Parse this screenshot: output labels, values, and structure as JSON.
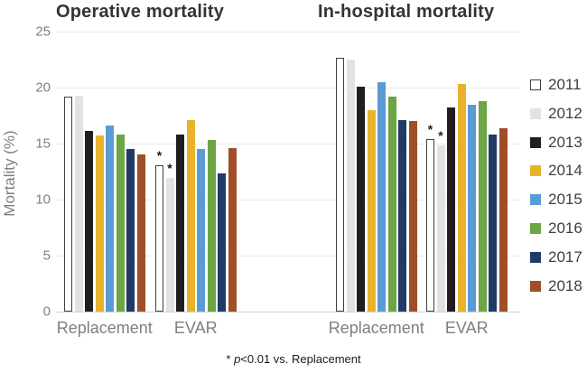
{
  "figure": {
    "y_axis_label": "Mortality (%)",
    "footnote": {
      "star": "*",
      "p": "p",
      "rest": "<0.01 vs. Replacement"
    }
  },
  "legend": {
    "position": "right",
    "entries": [
      {
        "label": "2011",
        "color": "#ffffff",
        "border": "#404040"
      },
      {
        "label": "2012",
        "color": "#e2e2e2"
      },
      {
        "label": "2013",
        "color": "#221e1f"
      },
      {
        "label": "2014",
        "color": "#e8b32a"
      },
      {
        "label": "2015",
        "color": "#5b9bd5"
      },
      {
        "label": "2016",
        "color": "#6ca544"
      },
      {
        "label": "2017",
        "color": "#1f3b66"
      },
      {
        "label": "2018",
        "color": "#a04e28"
      }
    ]
  },
  "chart_data": [
    {
      "type": "bar",
      "title": "Operative mortality",
      "categories": [
        "Replacement",
        "EVAR"
      ],
      "series": [
        {
          "name": "2011",
          "values": [
            19.2,
            13.1
          ],
          "annotations": [
            null,
            "*"
          ]
        },
        {
          "name": "2012",
          "values": [
            19.3,
            11.9
          ],
          "annotations": [
            null,
            "*"
          ]
        },
        {
          "name": "2013",
          "values": [
            16.1,
            15.8
          ]
        },
        {
          "name": "2014",
          "values": [
            15.7,
            17.1
          ]
        },
        {
          "name": "2015",
          "values": [
            16.6,
            14.5
          ]
        },
        {
          "name": "2016",
          "values": [
            15.8,
            15.3
          ]
        },
        {
          "name": "2017",
          "values": [
            14.5,
            12.3
          ]
        },
        {
          "name": "2018",
          "values": [
            14.0,
            14.6
          ]
        }
      ],
      "ylabel": "Mortality (%)",
      "ylim": [
        0,
        25
      ],
      "ytick_step": 5,
      "grid": true,
      "legend_position": "right"
    },
    {
      "type": "bar",
      "title": "In-hospital mortality",
      "categories": [
        "Replacement",
        "EVAR"
      ],
      "series": [
        {
          "name": "2011",
          "values": [
            22.7,
            15.4
          ],
          "annotations": [
            null,
            "*"
          ]
        },
        {
          "name": "2012",
          "values": [
            22.5,
            14.8
          ],
          "annotations": [
            null,
            "*"
          ]
        },
        {
          "name": "2013",
          "values": [
            20.1,
            18.2
          ]
        },
        {
          "name": "2014",
          "values": [
            18.0,
            20.3
          ]
        },
        {
          "name": "2015",
          "values": [
            20.5,
            18.5
          ]
        },
        {
          "name": "2016",
          "values": [
            19.2,
            18.8
          ]
        },
        {
          "name": "2017",
          "values": [
            17.1,
            15.8
          ]
        },
        {
          "name": "2018",
          "values": [
            17.0,
            16.4
          ]
        }
      ],
      "ylabel": "Mortality (%)",
      "ylim": [
        0,
        25
      ],
      "ytick_step": 5,
      "grid": true,
      "legend_position": "right"
    }
  ]
}
